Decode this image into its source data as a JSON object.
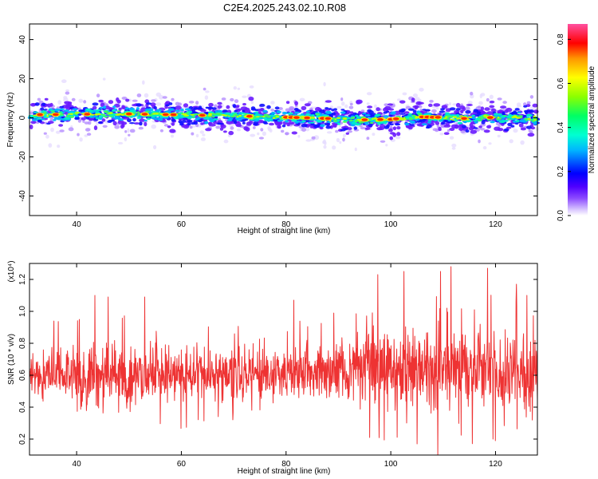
{
  "title": "C2E4.2025.243.02.10.R08",
  "chart_data": [
    {
      "type": "heatmap",
      "name": "spectrogram",
      "xlabel": "Height of straight line (km)",
      "ylabel": "Frequency (Hz)",
      "xlim": [
        31,
        128
      ],
      "ylim": [
        -50,
        48
      ],
      "xticks": [
        40,
        60,
        80,
        100,
        120
      ],
      "yticks": [
        -40,
        -20,
        0,
        20,
        40
      ],
      "band_center_hz": [
        [
          31,
          1.5
        ],
        [
          40,
          1.8
        ],
        [
          50,
          2.0
        ],
        [
          60,
          1.5
        ],
        [
          70,
          1.0
        ],
        [
          80,
          0.3
        ],
        [
          90,
          -0.5
        ],
        [
          95,
          -1.0
        ],
        [
          100,
          -0.8
        ],
        [
          105,
          0.5
        ],
        [
          110,
          0.2
        ],
        [
          115,
          -0.5
        ],
        [
          120,
          0.3
        ],
        [
          128,
          -0.2
        ]
      ],
      "peak_heights_km": [
        33,
        36,
        42,
        50,
        53,
        57,
        58.5,
        64,
        73,
        80,
        81,
        82,
        84,
        87,
        88,
        95,
        98,
        100,
        101,
        106,
        107,
        108,
        109,
        114,
        119
      ],
      "colorbar": {
        "label": "Normalized spectral amplitude",
        "range": [
          0.0,
          0.87
        ],
        "ticks": [
          0.0,
          0.2,
          0.4,
          0.6,
          0.8
        ]
      }
    },
    {
      "type": "line",
      "name": "snr",
      "xlabel": "Height of straight line (km)",
      "ylabel": "SNR (10 * v/v)",
      "y_multiplier": "(x10⁴)",
      "xlim": [
        31,
        128
      ],
      "ylim": [
        0.1,
        1.3
      ],
      "xticks": [
        40,
        60,
        80,
        100,
        120
      ],
      "yticks": [
        0.2,
        0.4,
        0.6,
        0.8,
        1.0,
        1.2
      ],
      "color": "#ee3333",
      "trend": [
        {
          "x": 31,
          "mean": 0.62,
          "spread": 0.18
        },
        {
          "x": 45,
          "mean": 0.6,
          "spread": 0.2
        },
        {
          "x": 60,
          "mean": 0.6,
          "spread": 0.17
        },
        {
          "x": 75,
          "mean": 0.6,
          "spread": 0.15
        },
        {
          "x": 88,
          "mean": 0.63,
          "spread": 0.18
        },
        {
          "x": 95,
          "mean": 0.62,
          "spread": 0.22
        },
        {
          "x": 105,
          "mean": 0.64,
          "spread": 0.24
        },
        {
          "x": 115,
          "mean": 0.64,
          "spread": 0.24
        },
        {
          "x": 128,
          "mean": 0.63,
          "spread": 0.22
        }
      ],
      "extremes": [
        {
          "x": 96.0,
          "y": 1.29
        },
        {
          "x": 111.5,
          "y": 1.28
        },
        {
          "x": 118.5,
          "y": 1.27
        },
        {
          "x": 109.5,
          "y": 1.25
        },
        {
          "x": 102.5,
          "y": 1.25
        },
        {
          "x": 97.5,
          "y": 1.23
        },
        {
          "x": 43.5,
          "y": 1.1
        },
        {
          "x": 46.0,
          "y": 1.09
        },
        {
          "x": 53.0,
          "y": 1.09
        },
        {
          "x": 81.5,
          "y": 1.07
        },
        {
          "x": 126.0,
          "y": 1.1
        },
        {
          "x": 124.0,
          "y": 1.17
        },
        {
          "x": 109.0,
          "y": 0.1
        },
        {
          "x": 105.0,
          "y": 0.17
        },
        {
          "x": 119.5,
          "y": 0.2
        },
        {
          "x": 96.0,
          "y": 0.21
        },
        {
          "x": 120.0,
          "y": 0.19
        }
      ]
    }
  ]
}
